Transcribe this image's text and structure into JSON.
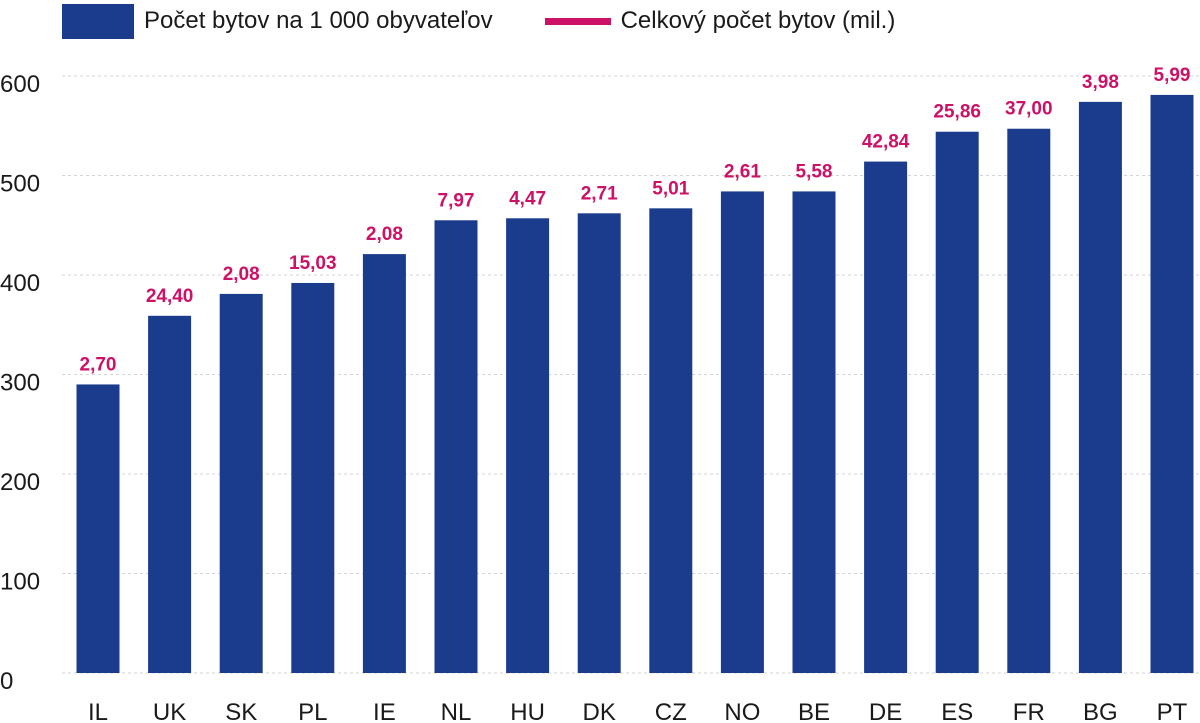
{
  "legend": {
    "bars_label": "Počet bytov na 1 000 obyvateľov",
    "line_label": "Celkový počet bytov (mil.)"
  },
  "colors": {
    "bar": "#1b3c8c",
    "label": "#cc1166",
    "grid": "#d3d3d3",
    "axis_text": "#1a1a1a"
  },
  "chart_data": {
    "type": "bar",
    "categories": [
      "IL",
      "UK",
      "SK",
      "PL",
      "IE",
      "NL",
      "HU",
      "DK",
      "CZ",
      "NO",
      "BE",
      "DE",
      "ES",
      "FR",
      "BG",
      "PT"
    ],
    "series": [
      {
        "name": "Počet bytov na 1 000 obyvateľov",
        "values": [
          290,
          359,
          381,
          392,
          421,
          455,
          457,
          462,
          467,
          484,
          484,
          514,
          544,
          547,
          574,
          581
        ]
      },
      {
        "name": "Celkový počet bytov (mil.)",
        "values": [
          2.7,
          24.4,
          2.08,
          15.03,
          2.08,
          7.97,
          4.47,
          2.71,
          5.01,
          2.61,
          5.58,
          42.84,
          25.86,
          37.0,
          3.98,
          5.99
        ],
        "display": [
          "2,70",
          "24,40",
          "2,08",
          "15,03",
          "2,08",
          "7,97",
          "4,47",
          "2,71",
          "5,01",
          "2,61",
          "5,58",
          "42,84",
          "25,86",
          "37,00",
          "3,98",
          "5,99"
        ]
      }
    ],
    "yticks": [
      "0",
      "100",
      "200",
      "300",
      "400",
      "500",
      "600"
    ],
    "ylim": [
      0,
      600
    ],
    "grid": true,
    "legend_position": "top-left"
  }
}
